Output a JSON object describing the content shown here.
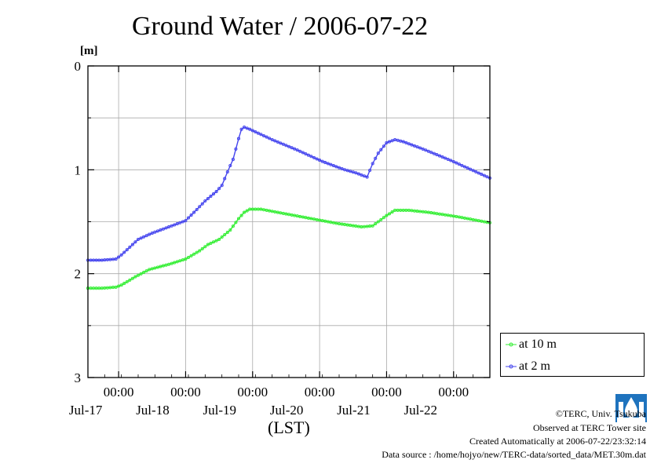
{
  "title": "Ground Water / 2006-07-22",
  "y_unit": "[m]",
  "xlabel": "(LST)",
  "legend": [
    {
      "label": "at 10 m",
      "color": "#33ee33"
    },
    {
      "label": "at 2 m",
      "color": "#4444ee"
    }
  ],
  "credits": {
    "copyright": "©TERC, Univ. Tsukuba",
    "observed": "Observed at TERC Tower site",
    "created": "Created Automatically at 2006-07-22/23:32:14",
    "source": "Data source : /home/hojyo/new/TERC-data/sorted_data/MET.30m.dat"
  },
  "logo": {
    "text": "TERC",
    "color": "#1e73be"
  },
  "chart_data": {
    "type": "line",
    "title": "Ground Water / 2006-07-22",
    "ylabel": "[m]",
    "xlabel": "(LST)",
    "x_unit": "hours from 2006-07-16 13:00 LST",
    "xlim": [
      0,
      144
    ],
    "ylim": [
      3,
      0
    ],
    "y_inverted": true,
    "yticks": [
      0,
      1,
      2,
      3
    ],
    "xticks": [
      {
        "x": 11,
        "time": "00:00",
        "date": "Jul-17"
      },
      {
        "x": 35,
        "time": "00:00",
        "date": "Jul-18"
      },
      {
        "x": 59,
        "time": "00:00",
        "date": "Jul-19"
      },
      {
        "x": 83,
        "time": "00:00",
        "date": "Jul-20"
      },
      {
        "x": 107,
        "time": "00:00",
        "date": "Jul-21"
      },
      {
        "x": 131,
        "time": "00:00",
        "date": "Jul-22"
      }
    ],
    "grid": true,
    "legend_position": "right, outside plot",
    "series": [
      {
        "name": "at 10 m",
        "color": "#33ee33",
        "points": [
          [
            0,
            2.14
          ],
          [
            5,
            2.14
          ],
          [
            10,
            2.13
          ],
          [
            12,
            2.11
          ],
          [
            17,
            2.03
          ],
          [
            22,
            1.96
          ],
          [
            29,
            1.91
          ],
          [
            35,
            1.86
          ],
          [
            40,
            1.78
          ],
          [
            43,
            1.72
          ],
          [
            47,
            1.67
          ],
          [
            51,
            1.58
          ],
          [
            54,
            1.47
          ],
          [
            56,
            1.41
          ],
          [
            58,
            1.38
          ],
          [
            62,
            1.38
          ],
          [
            70,
            1.42
          ],
          [
            80,
            1.47
          ],
          [
            90,
            1.52
          ],
          [
            98,
            1.55
          ],
          [
            102,
            1.54
          ],
          [
            104,
            1.5
          ],
          [
            107,
            1.44
          ],
          [
            110,
            1.39
          ],
          [
            115,
            1.39
          ],
          [
            122,
            1.41
          ],
          [
            132,
            1.45
          ],
          [
            144,
            1.51
          ]
        ]
      },
      {
        "name": "at 2 m",
        "color": "#4444ee",
        "points": [
          [
            0,
            1.87
          ],
          [
            5,
            1.87
          ],
          [
            10,
            1.86
          ],
          [
            12,
            1.82
          ],
          [
            18,
            1.67
          ],
          [
            23,
            1.61
          ],
          [
            29,
            1.55
          ],
          [
            35,
            1.49
          ],
          [
            38,
            1.41
          ],
          [
            42,
            1.3
          ],
          [
            46,
            1.21
          ],
          [
            48,
            1.15
          ],
          [
            50,
            1.02
          ],
          [
            52,
            0.9
          ],
          [
            54,
            0.7
          ],
          [
            55,
            0.61
          ],
          [
            56,
            0.59
          ],
          [
            58,
            0.61
          ],
          [
            66,
            0.71
          ],
          [
            75,
            0.81
          ],
          [
            84,
            0.92
          ],
          [
            92,
            1.0
          ],
          [
            96,
            1.03
          ],
          [
            100,
            1.07
          ],
          [
            102,
            0.94
          ],
          [
            104,
            0.84
          ],
          [
            107,
            0.74
          ],
          [
            110,
            0.71
          ],
          [
            113,
            0.73
          ],
          [
            120,
            0.8
          ],
          [
            130,
            0.91
          ],
          [
            144,
            1.08
          ]
        ]
      }
    ]
  }
}
